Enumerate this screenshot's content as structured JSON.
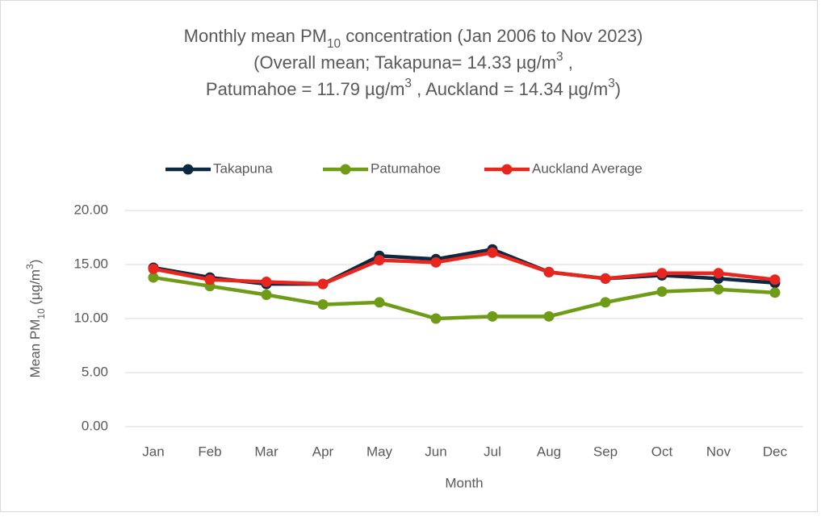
{
  "chart_data": {
    "type": "line",
    "title": [
      [
        {
          "text": "Monthly mean PM"
        },
        {
          "text": "10",
          "baseline": "sub"
        },
        {
          "text": " concentration (Jan 2006 to Nov 2023)"
        }
      ],
      [
        {
          "text": "(Overall mean; Takapuna= 14.33 µg/m"
        },
        {
          "text": "3",
          "baseline": "super"
        },
        {
          "text": " ,"
        }
      ],
      [
        {
          "text": "Patumahoe = 11.79 µg/m"
        },
        {
          "text": "3",
          "baseline": "super"
        },
        {
          "text": " , Auckland = 14.34 µg/m"
        },
        {
          "text": "3",
          "baseline": "super"
        },
        {
          "text": ")"
        }
      ]
    ],
    "x_label": "Month",
    "y_label": [
      {
        "text": "Mean PM"
      },
      {
        "text": "10",
        "baseline": "sub"
      },
      {
        "text": " (µg/m"
      },
      {
        "text": "3",
        "baseline": "super"
      },
      {
        "text": ")"
      }
    ],
    "categories": [
      "Jan",
      "Feb",
      "Mar",
      "Apr",
      "May",
      "Jun",
      "Jul",
      "Aug",
      "Sep",
      "Oct",
      "Nov",
      "Dec"
    ],
    "series": [
      {
        "name": "Takapuna",
        "color": "#0e2841",
        "values": [
          14.7,
          13.8,
          13.2,
          13.2,
          15.8,
          15.5,
          16.4,
          14.3,
          13.7,
          14.0,
          13.7,
          13.3
        ]
      },
      {
        "name": "Patumahoe",
        "color": "#6f9c17",
        "values": [
          13.8,
          13.0,
          12.2,
          11.3,
          11.5,
          10.0,
          10.2,
          10.2,
          11.5,
          12.5,
          12.7,
          12.4
        ]
      },
      {
        "name": "Auckland Average",
        "color": "#e8261d",
        "values": [
          14.6,
          13.6,
          13.4,
          13.2,
          15.4,
          15.2,
          16.1,
          14.3,
          13.7,
          14.2,
          14.2,
          13.6
        ]
      }
    ],
    "ylim": [
      0,
      20
    ],
    "yticks": [
      {
        "value": 0,
        "label": "0.00"
      },
      {
        "value": 5,
        "label": "5.00"
      },
      {
        "value": 10,
        "label": "10.00"
      },
      {
        "value": 15,
        "label": "15.00"
      },
      {
        "value": 20,
        "label": "20.00"
      }
    ],
    "grid": true,
    "legend": "top"
  }
}
